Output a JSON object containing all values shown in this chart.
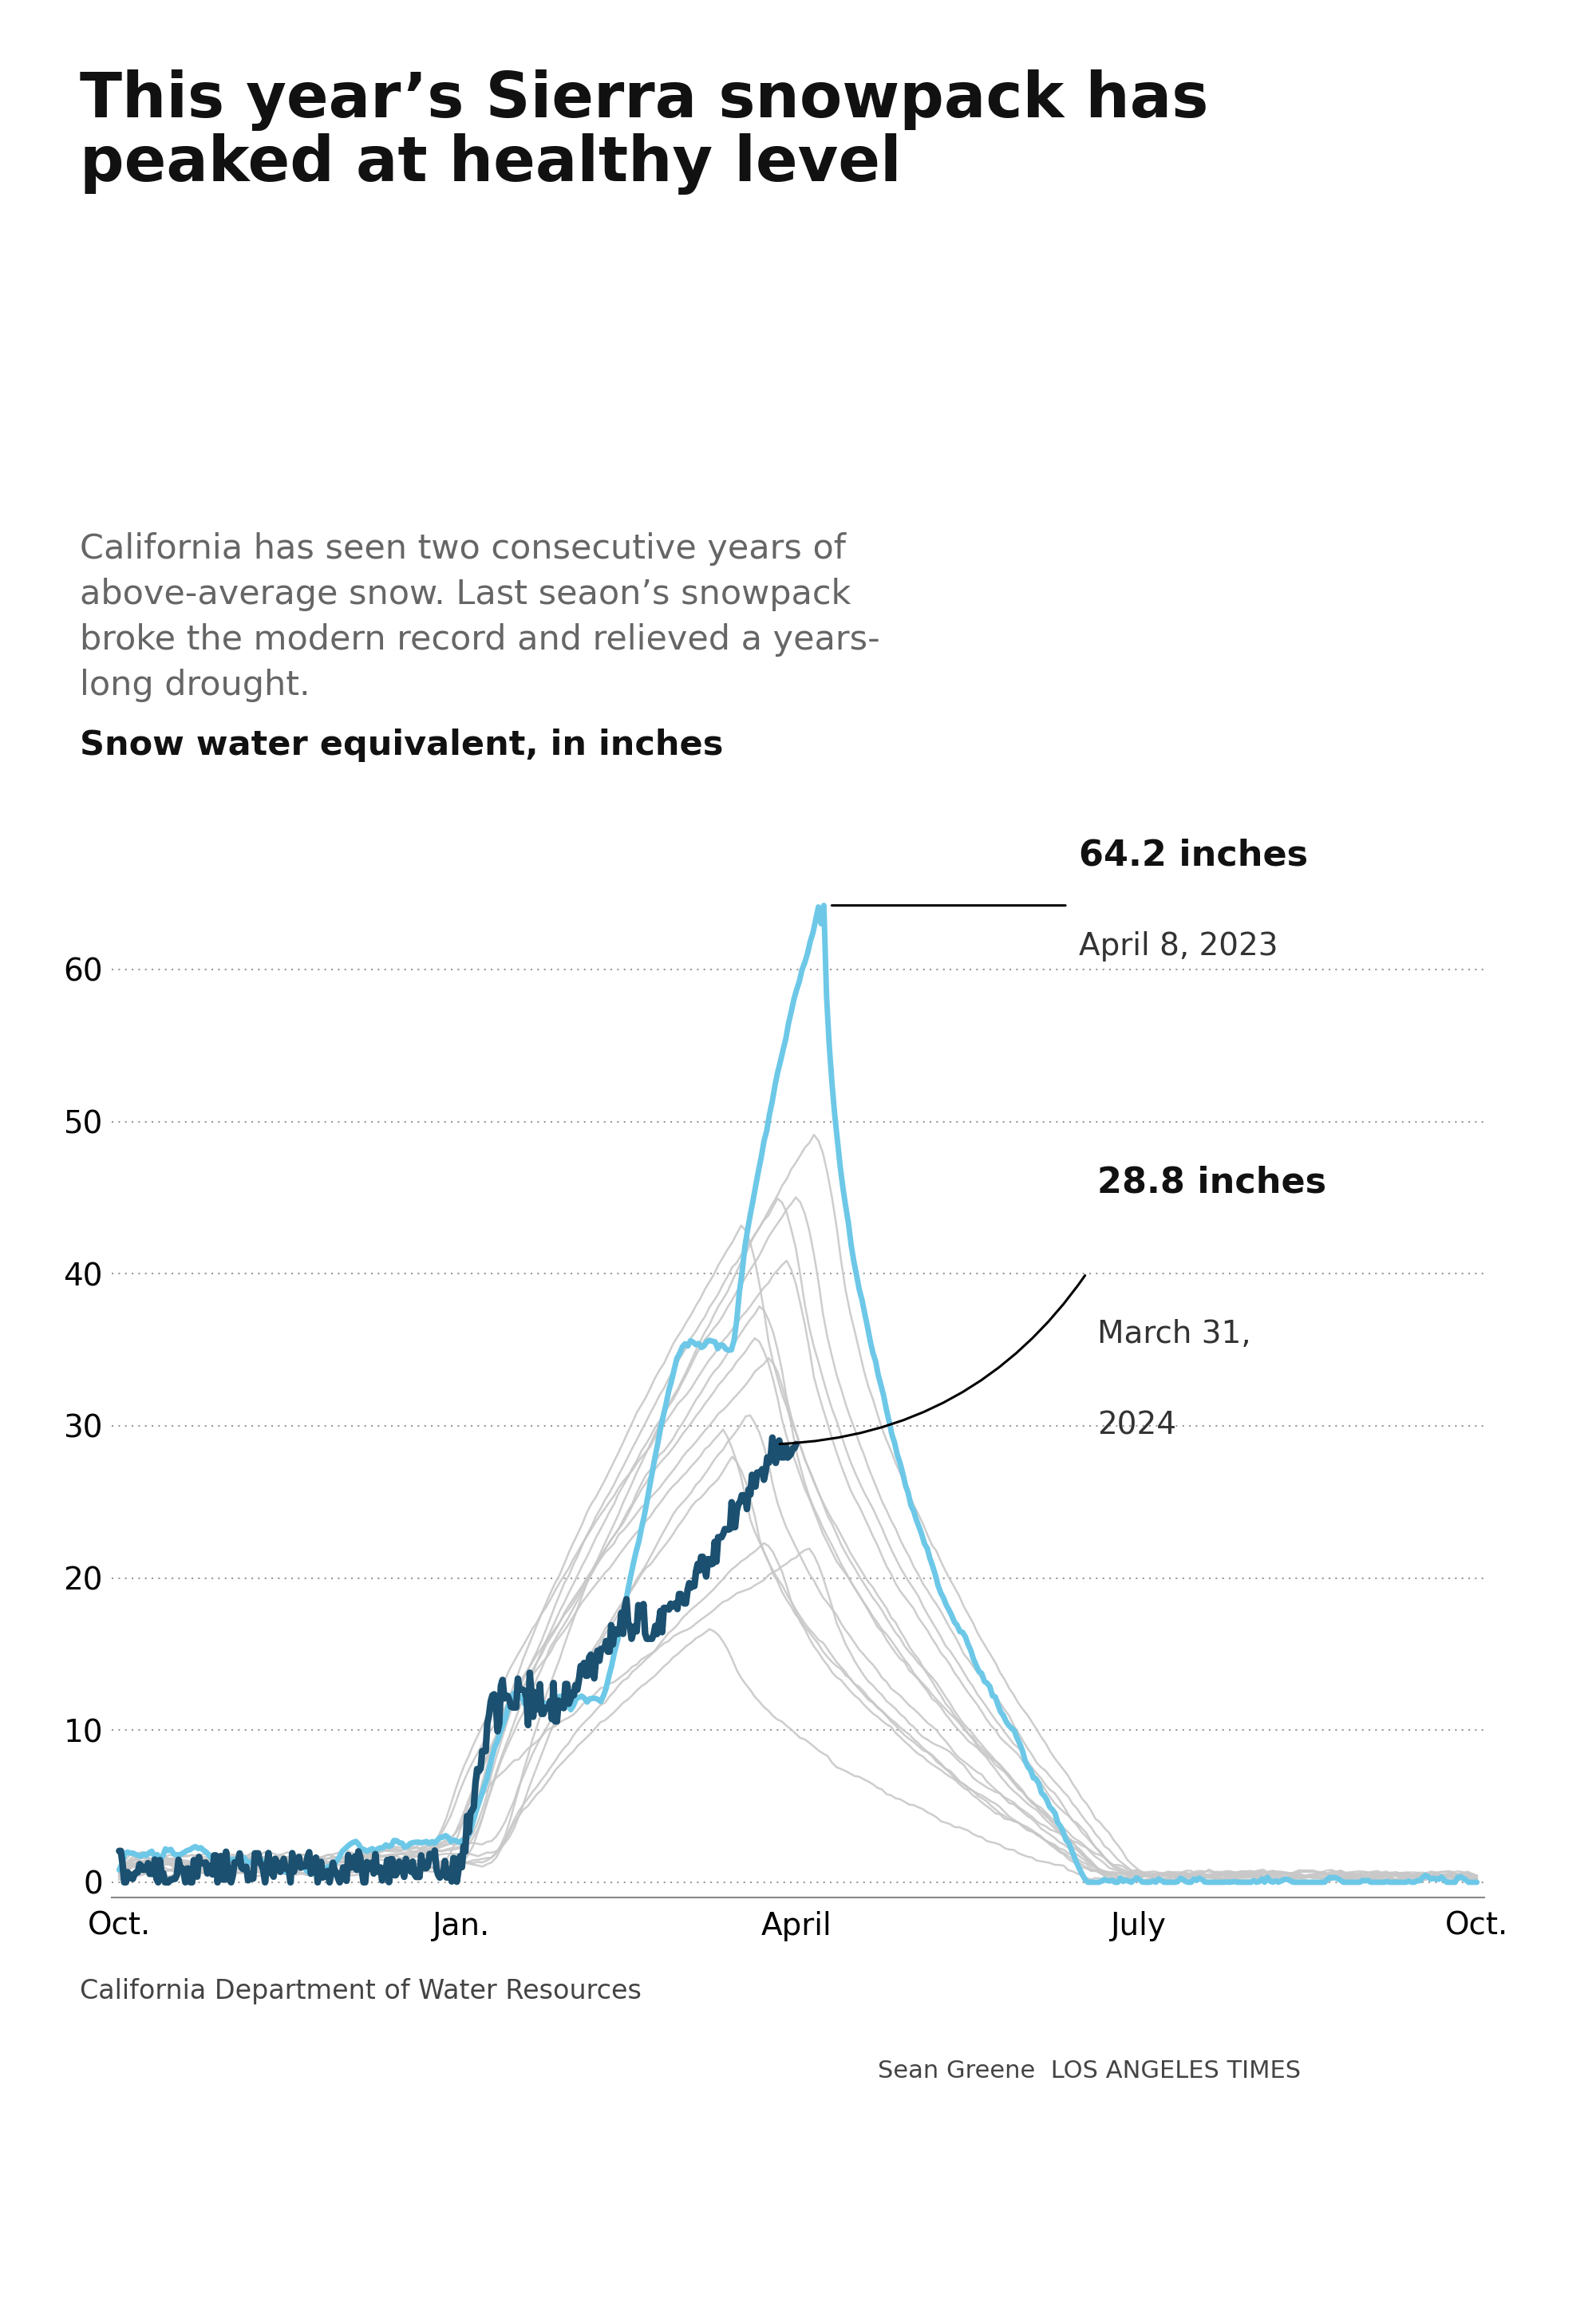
{
  "title": "This year’s Sierra snowpack has\npeaked at healthy level",
  "subtitle": "California has seen two consecutive years of\nabove-average snow. Last seaon’s snowpack\nbroke the modern record and relieved a years-\nlong drought.",
  "axis_label": "Snow water equivalent, in inches",
  "annotation_2023_text": "64.2 inches",
  "annotation_2023_date": "April 8, 2023",
  "annotation_2024_text": "28.8 inches",
  "annotation_2024_date": "March 31,\n2024",
  "source": "California Department of Water Resources",
  "byline": "Sean Greene  LOS ANGELES TIMES",
  "color_2023": "#6DC8E8",
  "color_2024": "#1B5070",
  "color_historical": "#C8C8C8",
  "background_color": "#ffffff",
  "yticks": [
    0,
    10,
    20,
    30,
    40,
    50,
    60
  ],
  "ylim": [
    -1,
    72
  ],
  "xtick_labels": [
    "Oct.",
    "Jan.",
    "April",
    "July",
    "Oct."
  ],
  "xtick_positions": [
    0,
    92,
    182,
    274,
    365
  ]
}
